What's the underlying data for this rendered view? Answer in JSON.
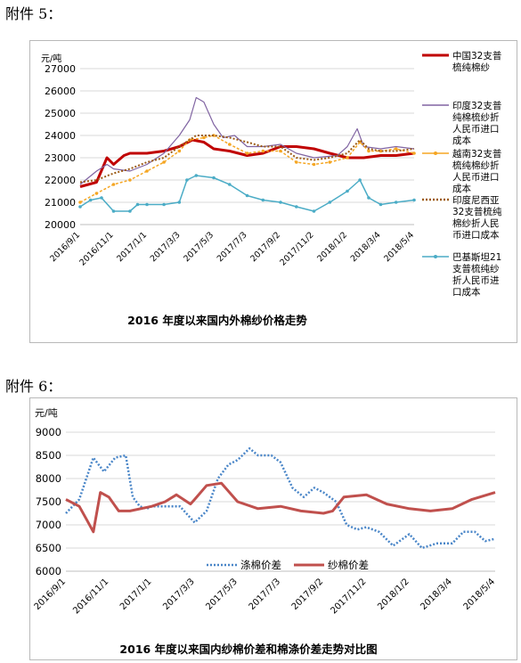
{
  "attachments": {
    "first": "附件 5：",
    "second": "附件 6："
  },
  "chart_data": [
    {
      "type": "line",
      "title": "2016 年度以来国内外棉纱价格走势",
      "ylabel": "元/吨",
      "ylim": [
        20000,
        27000
      ],
      "yticks": [
        20000,
        21000,
        22000,
        23000,
        24000,
        25000,
        26000,
        27000
      ],
      "xlim": [
        "2016-09-01",
        "2018-05-04"
      ],
      "xtick_labels": [
        "2016/9/1",
        "2016/11/1",
        "2017/1/1",
        "2017/3/3",
        "2017/5/3",
        "2017/7/3",
        "2017/9/2",
        "2017/11/2",
        "2018/1/2",
        "2018/3/4",
        "2018/5/4"
      ],
      "xtick_dates": [
        "2016-09-01",
        "2016-11-01",
        "2017-01-01",
        "2017-03-03",
        "2017-05-03",
        "2017-07-03",
        "2017-09-02",
        "2017-11-02",
        "2018-01-02",
        "2018-03-04",
        "2018-05-04"
      ],
      "legend_position": "right",
      "series": [
        {
          "name": "中国32支普梳纯棉纱",
          "color": "#c00000",
          "style": "solid-thick",
          "x": [
            "2016-09-01",
            "2016-10-01",
            "2016-10-20",
            "2016-11-01",
            "2016-11-20",
            "2016-12-01",
            "2017-01-01",
            "2017-02-01",
            "2017-03-01",
            "2017-03-25",
            "2017-04-15",
            "2017-05-03",
            "2017-06-01",
            "2017-07-03",
            "2017-08-01",
            "2017-09-02",
            "2017-10-01",
            "2017-11-02",
            "2017-12-01",
            "2018-01-02",
            "2018-02-01",
            "2018-03-04",
            "2018-04-01",
            "2018-05-04"
          ],
          "values": [
            21700,
            21900,
            23000,
            22700,
            23100,
            23200,
            23200,
            23300,
            23500,
            23800,
            23700,
            23400,
            23300,
            23100,
            23200,
            23500,
            23500,
            23400,
            23200,
            23000,
            23000,
            23100,
            23100,
            23200
          ]
        },
        {
          "name": "印度32支普纯棉梳纱折人民币进口成本",
          "color": "#8064a2",
          "style": "solid-thin",
          "x": [
            "2016-09-01",
            "2016-10-01",
            "2016-10-20",
            "2016-11-01",
            "2016-12-01",
            "2017-01-01",
            "2017-02-01",
            "2017-03-01",
            "2017-03-20",
            "2017-04-01",
            "2017-04-15",
            "2017-05-03",
            "2017-05-20",
            "2017-06-10",
            "2017-07-03",
            "2017-08-01",
            "2017-09-02",
            "2017-10-01",
            "2017-11-02",
            "2017-12-15",
            "2018-01-02",
            "2018-01-20",
            "2018-02-01",
            "2018-03-04",
            "2018-04-01",
            "2018-05-04"
          ],
          "values": [
            21800,
            22400,
            22700,
            22500,
            22400,
            22700,
            23200,
            24000,
            24700,
            25700,
            25500,
            24500,
            23900,
            24000,
            23500,
            23500,
            23600,
            23200,
            23000,
            23100,
            23500,
            24300,
            23500,
            23400,
            23500,
            23400
          ]
        },
        {
          "name": "越南32支普梳纯棉纱折人民币进口成本",
          "color": "#f5a623",
          "style": "dots-markers",
          "x": [
            "2016-09-01",
            "2016-10-01",
            "2016-11-01",
            "2016-12-01",
            "2017-01-01",
            "2017-02-01",
            "2017-03-01",
            "2017-03-20",
            "2017-04-15",
            "2017-05-03",
            "2017-06-01",
            "2017-07-03",
            "2017-08-01",
            "2017-09-02",
            "2017-10-01",
            "2017-11-02",
            "2017-12-01",
            "2018-01-02",
            "2018-01-25",
            "2018-02-10",
            "2018-03-04",
            "2018-04-01",
            "2018-05-04"
          ],
          "values": [
            21000,
            21400,
            21800,
            22000,
            22400,
            22800,
            23300,
            23800,
            23900,
            24000,
            23600,
            23200,
            23300,
            23300,
            22800,
            22700,
            22800,
            23000,
            23700,
            23300,
            23300,
            23400,
            23200
          ]
        },
        {
          "name": "印度尼西亚32支普梳纯棉纱折人民币进口成本",
          "color": "#9c5b16",
          "style": "dotted",
          "x": [
            "2016-09-01",
            "2016-10-01",
            "2016-11-01",
            "2016-12-01",
            "2017-01-01",
            "2017-02-01",
            "2017-03-01",
            "2017-04-01",
            "2017-05-03",
            "2017-06-01",
            "2017-07-03",
            "2017-08-01",
            "2017-09-02",
            "2017-10-01",
            "2017-11-02",
            "2017-12-01",
            "2018-01-02",
            "2018-01-25",
            "2018-02-10",
            "2018-03-04",
            "2018-04-01",
            "2018-05-04"
          ],
          "values": [
            21900,
            22000,
            22300,
            22500,
            22800,
            23000,
            23500,
            24000,
            24000,
            23900,
            23700,
            23500,
            23500,
            23000,
            22900,
            23000,
            23200,
            23800,
            23400,
            23300,
            23300,
            23400
          ]
        },
        {
          "name": "巴基斯坦21支普梳纯纱折人民币进口成本",
          "color": "#4bacc6",
          "style": "line-markers",
          "x": [
            "2016-09-01",
            "2016-09-20",
            "2016-10-10",
            "2016-11-01",
            "2016-12-01",
            "2016-12-15",
            "2017-01-01",
            "2017-02-01",
            "2017-03-01",
            "2017-03-15",
            "2017-04-01",
            "2017-05-03",
            "2017-06-01",
            "2017-07-03",
            "2017-08-01",
            "2017-09-02",
            "2017-10-01",
            "2017-11-02",
            "2017-12-01",
            "2018-01-02",
            "2018-01-25",
            "2018-02-10",
            "2018-03-04",
            "2018-04-01",
            "2018-05-04"
          ],
          "values": [
            20800,
            21100,
            21200,
            20600,
            20600,
            20900,
            20900,
            20900,
            21000,
            22000,
            22200,
            22100,
            21800,
            21300,
            21100,
            21000,
            20800,
            20600,
            21000,
            21500,
            22000,
            21200,
            20900,
            21000,
            21100
          ]
        }
      ]
    },
    {
      "type": "line",
      "title": "2016 年度以来国内纱棉价差和棉涤价差走势对比图",
      "ylabel": "元/吨",
      "ylim": [
        6000,
        9000
      ],
      "yticks": [
        6000,
        6500,
        7000,
        7500,
        8000,
        8500,
        9000
      ],
      "xlim": [
        "2016-09-01",
        "2018-05-04"
      ],
      "xtick_labels": [
        "2016/9/1",
        "2016/11/1",
        "2017/1/1",
        "2017/3/3",
        "2017/5/3",
        "2017/7/3",
        "2017/9/2",
        "2017/11/2",
        "2018/1/2",
        "2018/3/4",
        "2018/5/4"
      ],
      "xtick_dates": [
        "2016-09-01",
        "2016-11-01",
        "2017-01-01",
        "2017-03-03",
        "2017-05-03",
        "2017-07-03",
        "2017-09-02",
        "2017-11-02",
        "2018-01-02",
        "2018-03-04",
        "2018-05-04"
      ],
      "legend_position": "bottom-center",
      "series": [
        {
          "name": "涤棉价差",
          "color": "#4a86c8",
          "style": "dotted",
          "x": [
            "2016-09-01",
            "2016-09-20",
            "2016-10-10",
            "2016-10-25",
            "2016-11-10",
            "2016-11-25",
            "2016-12-05",
            "2016-12-15",
            "2016-12-25",
            "2017-01-01",
            "2017-01-20",
            "2017-02-10",
            "2017-03-03",
            "2017-03-20",
            "2017-04-05",
            "2017-04-20",
            "2017-05-03",
            "2017-05-20",
            "2017-06-01",
            "2017-06-20",
            "2017-07-03",
            "2017-07-20",
            "2017-08-05",
            "2017-08-20",
            "2017-09-02",
            "2017-09-20",
            "2017-10-05",
            "2017-10-20",
            "2017-11-02",
            "2017-11-20",
            "2017-12-10",
            "2018-01-02",
            "2018-01-20",
            "2018-02-10",
            "2018-03-04",
            "2018-03-20",
            "2018-04-05",
            "2018-04-20",
            "2018-05-04"
          ],
          "values": [
            7250,
            7550,
            8450,
            8150,
            8450,
            8500,
            7600,
            7400,
            7350,
            7400,
            7400,
            7400,
            7050,
            7300,
            8000,
            8300,
            8400,
            8650,
            8500,
            8500,
            8350,
            7800,
            7600,
            7800,
            7700,
            7500,
            7000,
            6900,
            6950,
            6850,
            6550,
            6800,
            6500,
            6600,
            6600,
            6850,
            6850,
            6650,
            6700
          ]
        },
        {
          "name": "纱棉价差",
          "color": "#c0504d",
          "style": "solid-thick",
          "x": [
            "2016-09-01",
            "2016-09-20",
            "2016-10-01",
            "2016-10-10",
            "2016-10-20",
            "2016-11-01",
            "2016-11-15",
            "2016-12-01",
            "2017-01-01",
            "2017-01-20",
            "2017-02-05",
            "2017-02-25",
            "2017-03-03",
            "2017-03-20",
            "2017-04-10",
            "2017-05-03",
            "2017-06-01",
            "2017-07-03",
            "2017-08-01",
            "2017-09-02",
            "2017-09-15",
            "2017-10-01",
            "2017-11-02",
            "2017-12-01",
            "2018-01-02",
            "2018-02-01",
            "2018-03-04",
            "2018-04-01",
            "2018-05-04"
          ],
          "values": [
            7550,
            7400,
            7100,
            6850,
            7700,
            7600,
            7300,
            7300,
            7400,
            7500,
            7650,
            7450,
            7550,
            7850,
            7900,
            7500,
            7350,
            7400,
            7300,
            7250,
            7300,
            7600,
            7650,
            7450,
            7350,
            7300,
            7350,
            7550,
            7700
          ]
        }
      ]
    }
  ]
}
